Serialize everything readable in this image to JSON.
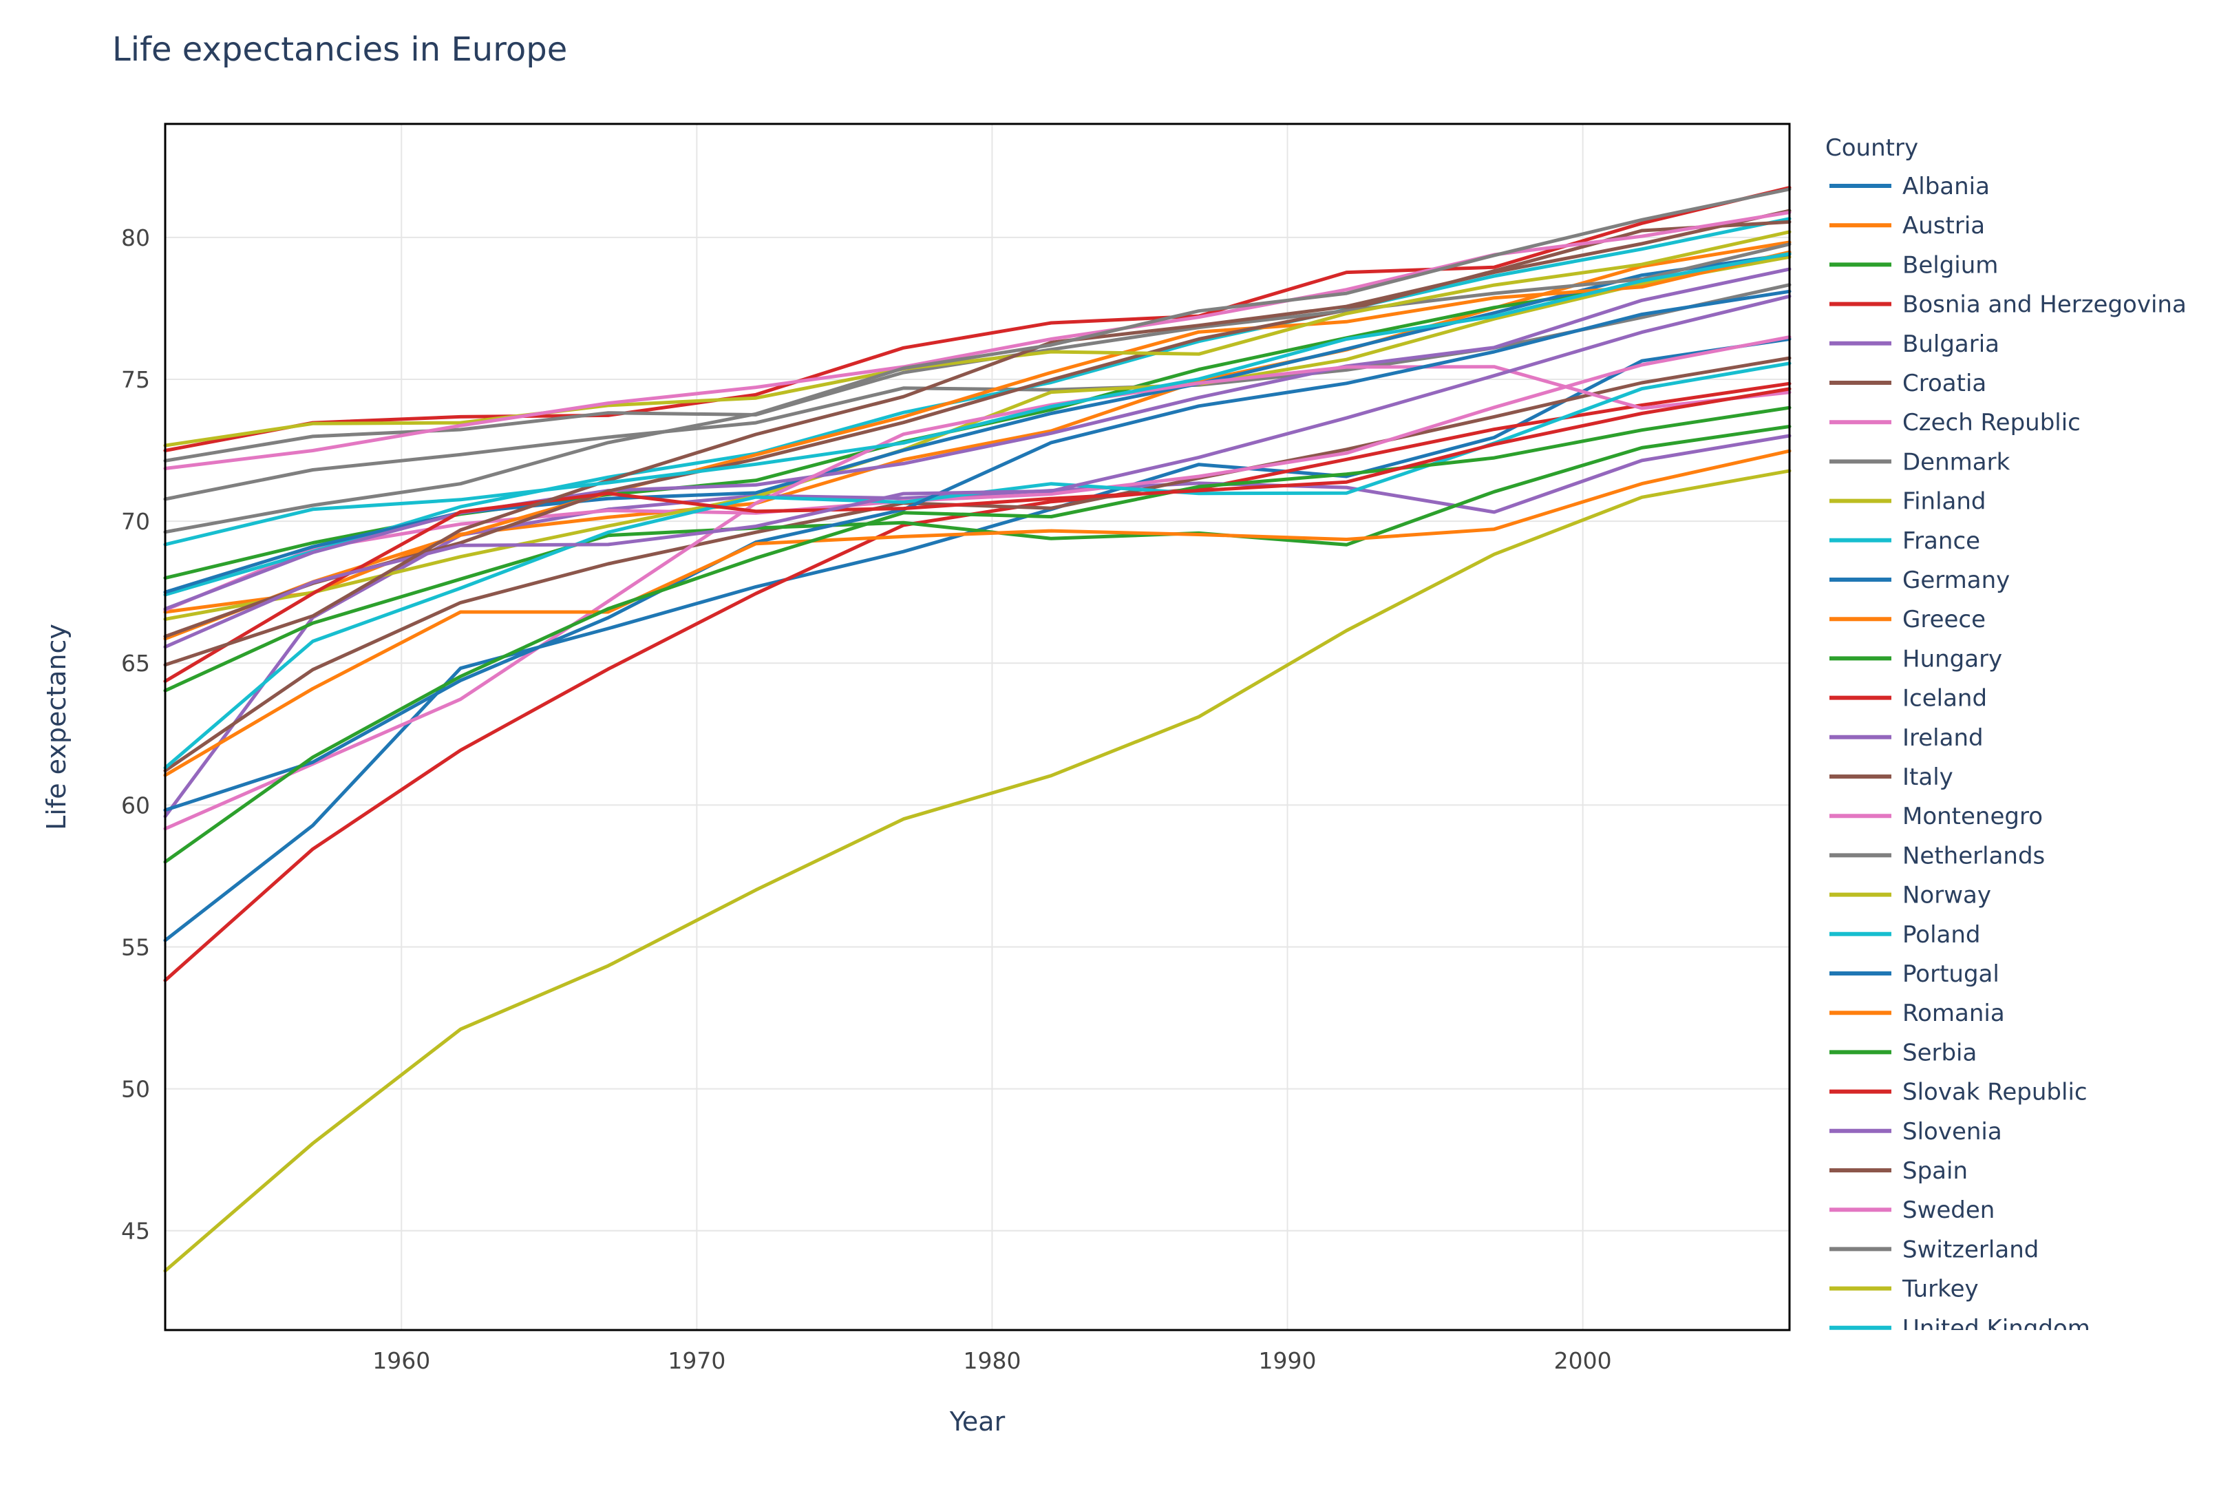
{
  "chart_data": {
    "type": "line",
    "title": "Life expectancies in Europe",
    "xlabel": "Year",
    "ylabel": "Life expectancy",
    "xlim": [
      1952,
      2007
    ],
    "ylim": [
      41.5,
      84
    ],
    "x_ticks": [
      1960,
      1970,
      1980,
      1990,
      2000
    ],
    "y_ticks": [
      45,
      50,
      55,
      60,
      65,
      70,
      75,
      80
    ],
    "grid": true,
    "legend_title": "Country",
    "legend_position": "right",
    "x": [
      1952,
      1957,
      1962,
      1967,
      1972,
      1977,
      1982,
      1987,
      1992,
      1997,
      2002,
      2007
    ],
    "series": [
      {
        "name": "Albania",
        "color": "#1f77b4",
        "values": [
          55.23,
          59.28,
          64.82,
          66.22,
          67.69,
          68.93,
          70.42,
          72.0,
          71.58,
          72.95,
          75.65,
          76.42
        ]
      },
      {
        "name": "Austria",
        "color": "#ff7f0e",
        "values": [
          66.8,
          67.48,
          69.54,
          70.14,
          70.63,
          72.17,
          73.18,
          74.94,
          76.04,
          77.51,
          78.98,
          79.83
        ]
      },
      {
        "name": "Belgium",
        "color": "#2ca02c",
        "values": [
          68.0,
          69.24,
          70.25,
          70.94,
          71.44,
          72.8,
          73.93,
          75.35,
          76.46,
          77.53,
          78.32,
          79.44
        ]
      },
      {
        "name": "Bosnia and Herzegovina",
        "color": "#d62728",
        "values": [
          53.82,
          58.45,
          61.93,
          64.79,
          67.45,
          69.86,
          70.69,
          71.14,
          72.18,
          73.24,
          74.09,
          74.85
        ]
      },
      {
        "name": "Bulgaria",
        "color": "#9467bd",
        "values": [
          59.6,
          66.61,
          69.51,
          70.42,
          70.9,
          70.81,
          71.08,
          71.34,
          71.19,
          70.32,
          72.14,
          73.01
        ]
      },
      {
        "name": "Croatia",
        "color": "#8c564b",
        "values": [
          61.21,
          64.77,
          67.13,
          68.5,
          69.61,
          70.64,
          70.46,
          71.52,
          72.53,
          73.68,
          74.88,
          75.75
        ]
      },
      {
        "name": "Czech Republic",
        "color": "#e377c2",
        "values": [
          66.87,
          69.03,
          69.9,
          70.38,
          70.29,
          70.71,
          70.96,
          71.58,
          72.4,
          74.01,
          75.51,
          76.49
        ]
      },
      {
        "name": "Denmark",
        "color": "#7f7f7f",
        "values": [
          70.78,
          71.81,
          72.35,
          72.96,
          73.47,
          74.69,
          74.63,
          74.8,
          75.33,
          76.11,
          77.18,
          78.33
        ]
      },
      {
        "name": "Finland",
        "color": "#bcbd22",
        "values": [
          66.55,
          67.49,
          68.75,
          69.83,
          70.87,
          72.52,
          74.55,
          74.83,
          75.7,
          77.13,
          78.37,
          79.31
        ]
      },
      {
        "name": "France",
        "color": "#17becf",
        "values": [
          67.41,
          68.93,
          70.51,
          71.55,
          72.38,
          73.83,
          74.89,
          76.34,
          77.46,
          78.64,
          79.59,
          80.66
        ]
      },
      {
        "name": "Germany",
        "color": "#1f77b4",
        "values": [
          67.5,
          69.1,
          70.3,
          70.8,
          71.0,
          72.5,
          73.8,
          74.847,
          76.07,
          77.34,
          78.67,
          79.406
        ]
      },
      {
        "name": "Greece",
        "color": "#ff7f0e",
        "values": [
          65.86,
          67.86,
          69.51,
          71.0,
          72.34,
          73.68,
          75.24,
          76.67,
          77.03,
          77.869,
          78.256,
          79.483
        ]
      },
      {
        "name": "Hungary",
        "color": "#2ca02c",
        "values": [
          64.03,
          66.41,
          67.96,
          69.5,
          69.76,
          69.95,
          69.39,
          69.58,
          69.17,
          71.04,
          72.59,
          73.338
        ]
      },
      {
        "name": "Iceland",
        "color": "#d62728",
        "values": [
          72.49,
          73.47,
          73.68,
          73.73,
          74.46,
          76.11,
          76.99,
          77.23,
          78.77,
          78.95,
          80.5,
          81.757
        ]
      },
      {
        "name": "Ireland",
        "color": "#9467bd",
        "values": [
          66.91,
          68.9,
          70.29,
          71.08,
          71.28,
          72.03,
          73.1,
          74.36,
          75.467,
          76.122,
          77.783,
          78.885
        ]
      },
      {
        "name": "Italy",
        "color": "#8c564b",
        "values": [
          65.94,
          67.81,
          69.24,
          71.06,
          72.19,
          73.48,
          74.98,
          76.42,
          77.44,
          78.82,
          80.24,
          80.546
        ]
      },
      {
        "name": "Montenegro",
        "color": "#e377c2",
        "values": [
          59.164,
          61.448,
          63.728,
          67.178,
          70.636,
          73.066,
          74.101,
          74.865,
          75.435,
          75.445,
          73.981,
          74.543
        ]
      },
      {
        "name": "Netherlands",
        "color": "#7f7f7f",
        "values": [
          72.13,
          72.99,
          73.23,
          73.82,
          73.75,
          75.24,
          76.05,
          76.83,
          77.42,
          78.03,
          78.53,
          79.762
        ]
      },
      {
        "name": "Norway",
        "color": "#bcbd22",
        "values": [
          72.67,
          73.44,
          73.47,
          74.08,
          74.34,
          75.37,
          75.97,
          75.89,
          77.32,
          78.32,
          79.05,
          80.196
        ]
      },
      {
        "name": "Poland",
        "color": "#17becf",
        "values": [
          61.31,
          65.77,
          67.64,
          69.61,
          70.85,
          70.67,
          71.32,
          70.98,
          70.99,
          72.75,
          74.67,
          75.563
        ]
      },
      {
        "name": "Portugal",
        "color": "#1f77b4",
        "values": [
          59.82,
          61.51,
          64.39,
          66.6,
          69.26,
          70.41,
          72.77,
          74.06,
          74.86,
          75.97,
          77.29,
          78.098
        ]
      },
      {
        "name": "Romania",
        "color": "#ff7f0e",
        "values": [
          61.05,
          64.1,
          66.8,
          66.8,
          69.21,
          69.46,
          69.66,
          69.53,
          69.36,
          69.72,
          71.322,
          72.476
        ]
      },
      {
        "name": "Serbia",
        "color": "#2ca02c",
        "values": [
          57.996,
          61.685,
          64.531,
          66.914,
          68.7,
          70.3,
          70.162,
          71.218,
          71.659,
          72.232,
          73.213,
          74.002
        ]
      },
      {
        "name": "Slovak Republic",
        "color": "#d62728",
        "values": [
          64.36,
          67.45,
          70.33,
          70.98,
          70.35,
          70.45,
          70.8,
          71.08,
          71.38,
          72.71,
          73.8,
          74.663
        ]
      },
      {
        "name": "Slovenia",
        "color": "#9467bd",
        "values": [
          65.57,
          67.85,
          69.15,
          69.18,
          69.82,
          70.97,
          71.063,
          72.25,
          73.64,
          75.13,
          76.66,
          77.926
        ]
      },
      {
        "name": "Spain",
        "color": "#8c564b",
        "values": [
          64.94,
          66.66,
          69.69,
          71.44,
          73.06,
          74.39,
          76.3,
          76.9,
          77.57,
          78.77,
          79.78,
          80.941
        ]
      },
      {
        "name": "Sweden",
        "color": "#e377c2",
        "values": [
          71.86,
          72.49,
          73.37,
          74.16,
          74.72,
          75.44,
          76.42,
          77.19,
          78.16,
          79.39,
          80.04,
          80.884
        ]
      },
      {
        "name": "Switzerland",
        "color": "#7f7f7f",
        "values": [
          69.62,
          70.56,
          71.32,
          72.77,
          73.78,
          75.39,
          76.21,
          77.41,
          78.03,
          79.37,
          80.62,
          81.701
        ]
      },
      {
        "name": "Turkey",
        "color": "#bcbd22",
        "values": [
          43.585,
          48.079,
          52.098,
          54.336,
          57.005,
          59.507,
          61.036,
          63.108,
          66.146,
          68.835,
          70.845,
          71.777
        ]
      },
      {
        "name": "United Kingdom",
        "color": "#17becf",
        "values": [
          69.18,
          70.42,
          70.76,
          71.36,
          72.01,
          72.76,
          74.04,
          75.007,
          76.42,
          77.218,
          78.471,
          79.425
        ]
      }
    ]
  }
}
